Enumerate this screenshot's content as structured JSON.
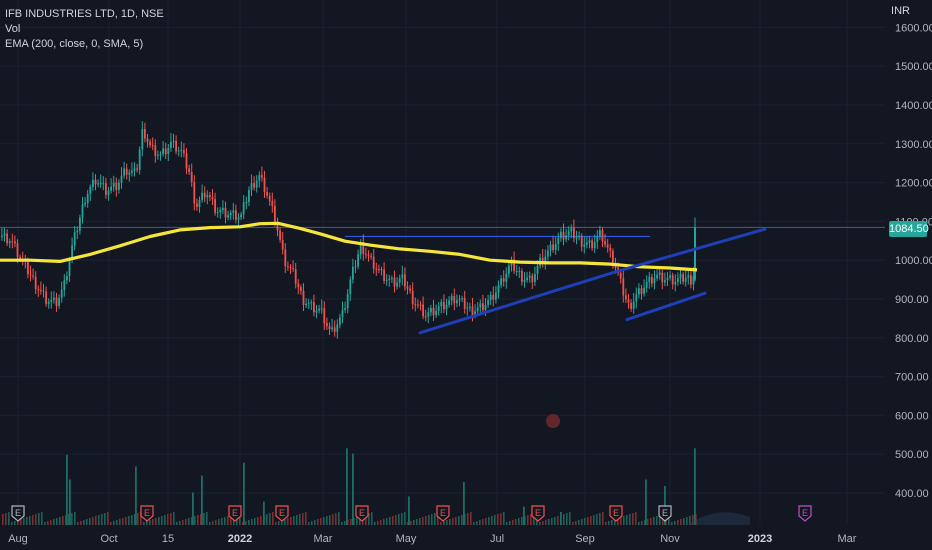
{
  "header": {
    "symbol_line": "IFB INDUSTRIES LTD, 1D, NSE",
    "vol_label": "Vol",
    "ema_label": "EMA (200, close, 0, SMA, 5)",
    "currency": "INR"
  },
  "last_price": "1084.50",
  "colors": {
    "background": "#131722",
    "up": "#26a69a",
    "down": "#ef5350",
    "ema": "#f5e63b",
    "trendline": "#1e3fb8",
    "horizontal_line": "#2962ff"
  },
  "chart_data": {
    "type": "line",
    "ylim": [
      365,
      1630
    ],
    "y_ticks": [
      "1600.00",
      "1500.00",
      "1400.00",
      "1300.00",
      "1200.00",
      "1100.00",
      "1000.00",
      "900.00",
      "800.00",
      "700.00",
      "600.00",
      "500.00",
      "400.00"
    ],
    "x_ticks": [
      "Aug",
      "Oct",
      "15",
      "2022",
      "Mar",
      "May",
      "Jul",
      "Sep",
      "Nov",
      "2023",
      "Mar"
    ],
    "price_series": {
      "name": "IFB INDUSTRIES LTD",
      "points": [
        [
          0,
          1060
        ],
        [
          10,
          1050
        ],
        [
          20,
          1000
        ],
        [
          32,
          950
        ],
        [
          45,
          900
        ],
        [
          55,
          890
        ],
        [
          63,
          930
        ],
        [
          70,
          1020
        ],
        [
          78,
          1100
        ],
        [
          85,
          1170
        ],
        [
          95,
          1210
        ],
        [
          105,
          1180
        ],
        [
          115,
          1190
        ],
        [
          125,
          1230
        ],
        [
          135,
          1220
        ],
        [
          142,
          1340
        ],
        [
          150,
          1290
        ],
        [
          160,
          1270
        ],
        [
          170,
          1300
        ],
        [
          180,
          1280
        ],
        [
          188,
          1230
        ],
        [
          195,
          1140
        ],
        [
          205,
          1180
        ],
        [
          215,
          1130
        ],
        [
          225,
          1120
        ],
        [
          240,
          1110
        ],
        [
          248,
          1180
        ],
        [
          258,
          1220
        ],
        [
          265,
          1180
        ],
        [
          275,
          1100
        ],
        [
          283,
          1000
        ],
        [
          293,
          960
        ],
        [
          302,
          900
        ],
        [
          312,
          880
        ],
        [
          320,
          870
        ],
        [
          330,
          810
        ],
        [
          342,
          860
        ],
        [
          350,
          950
        ],
        [
          360,
          1040
        ],
        [
          370,
          1000
        ],
        [
          382,
          960
        ],
        [
          392,
          940
        ],
        [
          402,
          950
        ],
        [
          412,
          900
        ],
        [
          425,
          860
        ],
        [
          440,
          880
        ],
        [
          455,
          900
        ],
        [
          470,
          870
        ],
        [
          480,
          880
        ],
        [
          490,
          900
        ],
        [
          500,
          940
        ],
        [
          510,
          990
        ],
        [
          520,
          960
        ],
        [
          530,
          950
        ],
        [
          540,
          1000
        ],
        [
          550,
          1030
        ],
        [
          560,
          1060
        ],
        [
          570,
          1070
        ],
        [
          580,
          1050
        ],
        [
          590,
          1040
        ],
        [
          600,
          1070
        ],
        [
          608,
          1020
        ],
        [
          615,
          980
        ],
        [
          622,
          920
        ],
        [
          628,
          880
        ],
        [
          635,
          910
        ],
        [
          645,
          940
        ],
        [
          655,
          960
        ],
        [
          665,
          950
        ],
        [
          675,
          945
        ],
        [
          685,
          955
        ],
        [
          692,
          950
        ],
        [
          697,
          1084.5
        ]
      ]
    },
    "ema_series": {
      "name": "EMA (200, close, 0, SMA, 5)",
      "points": [
        [
          0,
          1000
        ],
        [
          30,
          1000
        ],
        [
          60,
          997
        ],
        [
          90,
          1015
        ],
        [
          120,
          1037
        ],
        [
          150,
          1061
        ],
        [
          180,
          1078
        ],
        [
          210,
          1084
        ],
        [
          240,
          1086
        ],
        [
          260,
          1094
        ],
        [
          278,
          1095
        ],
        [
          300,
          1082
        ],
        [
          320,
          1068
        ],
        [
          345,
          1049
        ],
        [
          370,
          1039
        ],
        [
          400,
          1029
        ],
        [
          430,
          1023
        ],
        [
          460,
          1015
        ],
        [
          490,
          1000
        ],
        [
          520,
          995
        ],
        [
          550,
          993
        ],
        [
          580,
          993
        ],
        [
          610,
          990
        ],
        [
          640,
          983
        ],
        [
          670,
          980
        ],
        [
          697,
          975
        ]
      ]
    },
    "volume_series": {
      "name": "Vol",
      "bars": [
        [
          66,
          "up",
          0.54
        ],
        [
          69,
          "up",
          0.35
        ],
        [
          135,
          "up",
          0.45
        ],
        [
          192,
          "up",
          0.25
        ],
        [
          201,
          "up",
          0.38
        ],
        [
          243,
          "up",
          0.48
        ],
        [
          263,
          "up",
          0.18
        ],
        [
          346,
          "up",
          0.59
        ],
        [
          352,
          "up",
          0.55
        ],
        [
          408,
          "up",
          0.22
        ],
        [
          463,
          "up",
          0.33
        ],
        [
          523,
          "up",
          0.14
        ],
        [
          560,
          "up",
          0.1
        ],
        [
          645,
          "up",
          0.35
        ],
        [
          664,
          "up",
          0.3
        ],
        [
          694,
          "up",
          0.59
        ]
      ]
    },
    "horizontal_line": {
      "value": 1084.5
    },
    "trendlines": [
      {
        "points": [
          [
            420,
            813
          ],
          [
            618,
            972
          ]
        ]
      },
      {
        "points": [
          [
            627,
            847
          ],
          [
            705,
            915
          ]
        ]
      },
      {
        "points": [
          [
            618,
            972
          ],
          [
            765,
            1080
          ]
        ]
      }
    ],
    "event_markers": {
      "labels": [
        "E",
        "E",
        "E",
        "E",
        "E",
        "E",
        "E",
        "E",
        "E",
        "E"
      ],
      "x": [
        18,
        147,
        235,
        282,
        362,
        443,
        538,
        616,
        665,
        805
      ]
    }
  }
}
